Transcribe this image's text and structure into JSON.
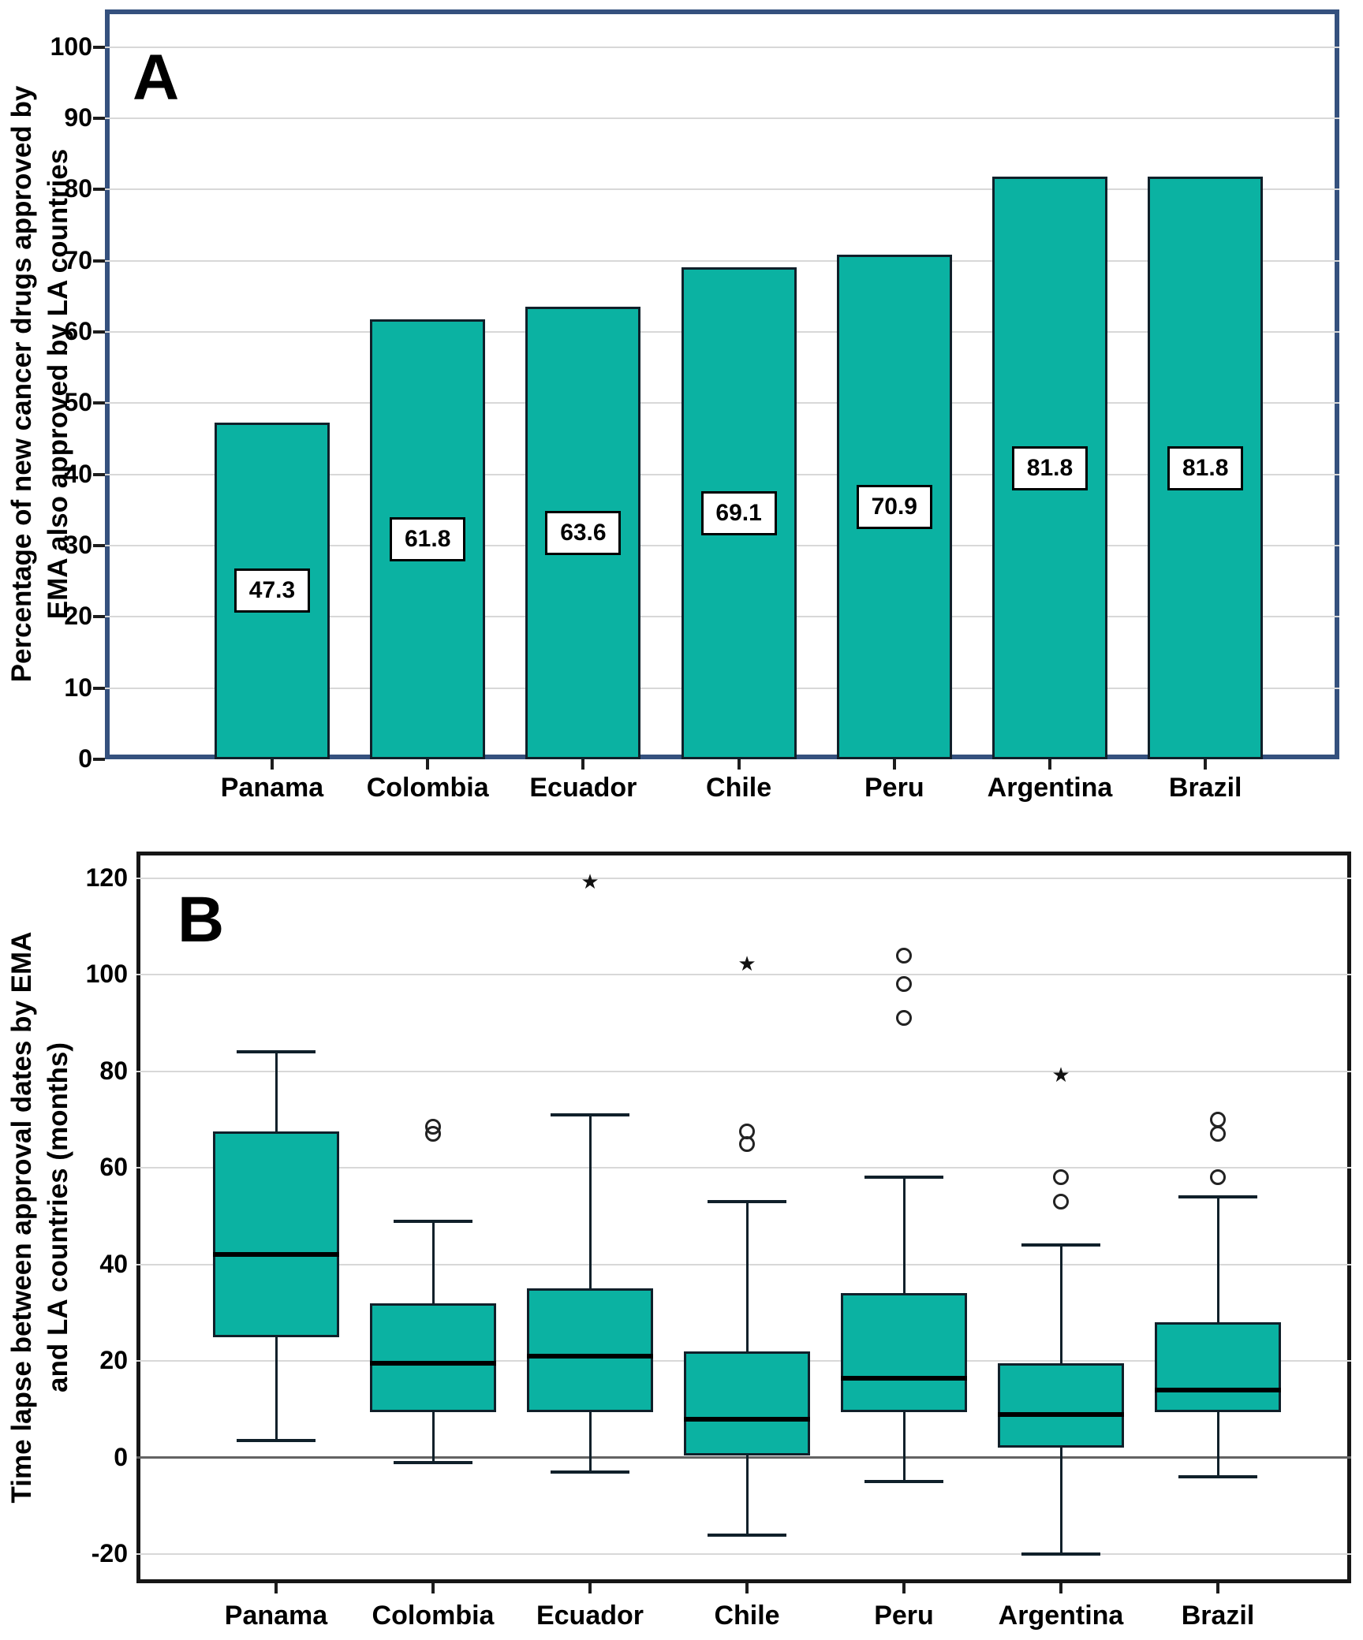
{
  "figure_panels": [
    {
      "panel_letter": "A",
      "ylabel_lines": [
        "Percentage of new cancer drugs approved by",
        "EMA also approved by LA countries"
      ]
    },
    {
      "panel_letter": "B",
      "ylabel_lines": [
        "Time lapse between approval dates by EMA",
        "and LA countries (months)"
      ]
    }
  ],
  "chart_data": [
    {
      "type": "bar",
      "panel_letter": "A",
      "title": "",
      "xlabel": "",
      "ylabel": "Percentage of new cancer drugs approved by EMA also approved by LA countries",
      "categories": [
        "Panama",
        "Colombia",
        "Ecuador",
        "Chile",
        "Peru",
        "Argentina",
        "Brazil"
      ],
      "values": [
        47.3,
        61.8,
        63.6,
        69.1,
        70.9,
        81.8,
        81.8
      ],
      "bar_labels": [
        "47.3",
        "61.8",
        "63.6",
        "69.1",
        "70.9",
        "81.8",
        "81.8"
      ],
      "ylim": [
        0,
        105.3
      ],
      "yticks": [
        0,
        10,
        20,
        30,
        40,
        50,
        60,
        70,
        80,
        90,
        100
      ],
      "grid": true,
      "legend_position": "none"
    },
    {
      "type": "boxplot",
      "panel_letter": "B",
      "title": "",
      "xlabel": "",
      "ylabel": "Time lapse between approval dates by EMA and LA countries (months)",
      "categories": [
        "Panama",
        "Colombia",
        "Ecuador",
        "Chile",
        "Peru",
        "Argentina",
        "Brazil"
      ],
      "boxes": [
        {
          "category": "Panama",
          "whisker_low": 3.5,
          "q1": 25,
          "median": 42,
          "q3": 67.5,
          "whisker_high": 84,
          "outlier_circles": [],
          "extreme_stars": []
        },
        {
          "category": "Colombia",
          "whisker_low": -1,
          "q1": 9.5,
          "median": 19.5,
          "q3": 32,
          "whisker_high": 49,
          "outlier_circles": [
            67,
            68.5
          ],
          "extreme_stars": []
        },
        {
          "category": "Ecuador",
          "whisker_low": -3,
          "q1": 9.5,
          "median": 21,
          "q3": 35,
          "whisker_high": 71,
          "outlier_circles": [],
          "extreme_stars": [
            119
          ]
        },
        {
          "category": "Chile",
          "whisker_low": -16,
          "q1": 0.5,
          "median": 8,
          "q3": 22,
          "whisker_high": 53,
          "outlier_circles": [
            65,
            67.5
          ],
          "extreme_stars": [
            102
          ]
        },
        {
          "category": "Peru",
          "whisker_low": -5,
          "q1": 9.5,
          "median": 16.5,
          "q3": 34,
          "whisker_high": 58,
          "outlier_circles": [
            91,
            98,
            104
          ],
          "extreme_stars": []
        },
        {
          "category": "Argentina",
          "whisker_low": -20,
          "q1": 2,
          "median": 9,
          "q3": 19.5,
          "whisker_high": 44,
          "outlier_circles": [
            53,
            58
          ],
          "extreme_stars": [
            79
          ]
        },
        {
          "category": "Brazil",
          "whisker_low": -4,
          "q1": 9.5,
          "median": 14,
          "q3": 28,
          "whisker_high": 54,
          "outlier_circles": [
            58,
            67,
            70
          ],
          "extreme_stars": []
        }
      ],
      "ylim": [
        -26,
        125.5
      ],
      "yticks": [
        -20,
        0,
        20,
        40,
        60,
        80,
        100,
        120
      ],
      "zero_line": true,
      "grid": true,
      "legend_position": "none"
    }
  ],
  "icons": {
    "outlier_circle": "open-circle-outlier-marker",
    "extreme_star": "star-extreme-marker",
    "extreme_star_glyph": "★"
  },
  "colors": {
    "fill_teal": "#0bb2a2",
    "shape_border": "#10202a",
    "panel_a_frame": "#35517e",
    "panel_b_frame": "#161616",
    "gridline": "#d8d8d8",
    "zero_line": "#636363",
    "text": "#000000",
    "value_label_bg": "#ffffff",
    "value_label_border": "#000000"
  }
}
